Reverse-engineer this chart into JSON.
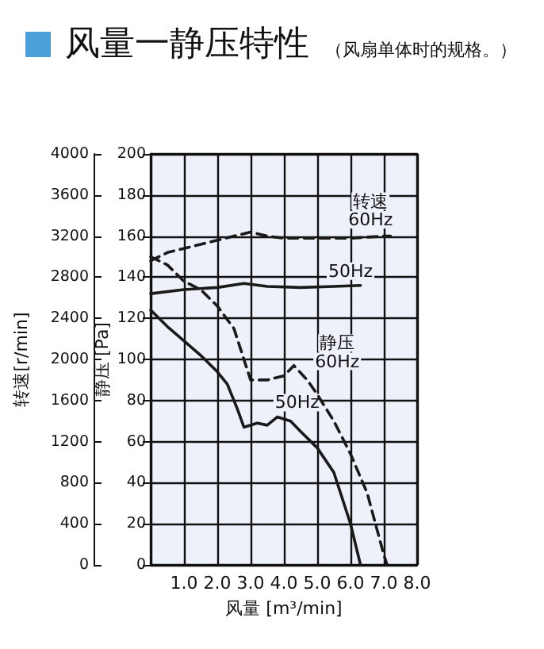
{
  "chart_data": {
    "type": "line",
    "title": "风量一静压特性",
    "subtitle": "（风扇单体时的规格。）",
    "xlabel": "风量 [m³/min]",
    "ylabel": "静压 [Pa]",
    "y2label": "转速[r/min]",
    "xlim": [
      0,
      8
    ],
    "xticks": [
      {
        "value": 0,
        "label": null
      },
      {
        "value": 1,
        "label": "1.0"
      },
      {
        "value": 2,
        "label": "2.0"
      },
      {
        "value": 3,
        "label": "3.0"
      },
      {
        "value": 4,
        "label": "4.0"
      },
      {
        "value": 5,
        "label": "5.0"
      },
      {
        "value": 6,
        "label": "6.0"
      },
      {
        "value": 7,
        "label": "7.0"
      },
      {
        "value": 8,
        "label": "8.0"
      }
    ],
    "ylim": [
      0,
      200
    ],
    "yticks": [
      0,
      20,
      40,
      60,
      80,
      100,
      120,
      140,
      160,
      180,
      200
    ],
    "y2lim": [
      0,
      4000
    ],
    "y2ticks": [
      0,
      400,
      800,
      1200,
      1600,
      2000,
      2400,
      2800,
      3200,
      3600,
      4000
    ],
    "grid": true,
    "marker": "none",
    "series": [
      {
        "color": "#1a1a1a",
        "line_style": "dashed",
        "axis": "y2",
        "x": [
          0,
          0.5,
          1,
          1.5,
          2,
          2.5,
          3,
          3.5,
          4,
          4.5,
          5,
          5.5,
          6,
          6.5,
          7,
          7.2
        ],
        "values": [
          2960,
          3040,
          3080,
          3120,
          3160,
          3200,
          3240,
          3200,
          3180,
          3180,
          3180,
          3180,
          3180,
          3190,
          3200,
          3200
        ]
      },
      {
        "color": "#1a1a1a",
        "line_style": "solid",
        "axis": "y2",
        "x": [
          0,
          1,
          2,
          2.8,
          3.5,
          4.5,
          5.5,
          6.3
        ],
        "values": [
          2640,
          2680,
          2700,
          2740,
          2710,
          2700,
          2710,
          2720
        ]
      },
      {
        "color": "#1a1a1a",
        "line_style": "dashed",
        "x": [
          0,
          0.5,
          1,
          1.5,
          2,
          2.5,
          3,
          3.5,
          4,
          4.3,
          4.7,
          5,
          5.5,
          6,
          6.5,
          7,
          7.1
        ],
        "values": [
          150,
          146,
          138,
          134,
          126,
          115,
          90,
          90,
          92,
          97,
          90,
          83,
          70,
          54,
          35,
          5,
          0
        ]
      },
      {
        "color": "#1a1a1a",
        "line_style": "solid",
        "x": [
          0,
          0.5,
          1,
          1.5,
          2,
          2.3,
          2.6,
          2.8,
          3.2,
          3.5,
          3.8,
          4.2,
          4.5,
          5,
          5.5,
          6,
          6.3
        ],
        "values": [
          124,
          116,
          109,
          102,
          94,
          88,
          76,
          67,
          69,
          68,
          72,
          70,
          65,
          57,
          45,
          20,
          0
        ]
      }
    ],
    "annotations": [
      {
        "text": "转速",
        "x": 6.6,
        "y": 177
      },
      {
        "text": "60Hz",
        "x": 6.6,
        "y": 168
      },
      {
        "text": "50Hz",
        "x": 6.0,
        "y": 143
      },
      {
        "text": "静压",
        "x": 5.6,
        "y": 108
      },
      {
        "text": "60Hz",
        "x": 5.6,
        "y": 99
      },
      {
        "text": "50Hz",
        "x": 4.4,
        "y": 79
      }
    ]
  }
}
